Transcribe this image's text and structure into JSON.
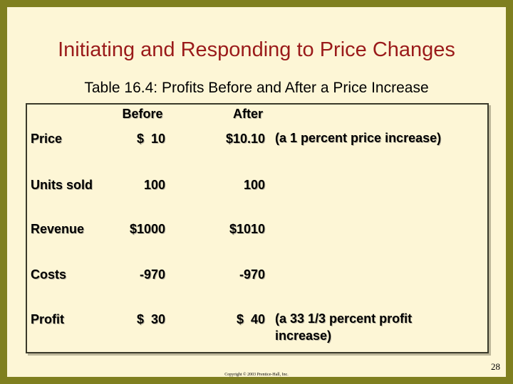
{
  "header": {
    "title": "Initiating and Responding to Price Changes",
    "subtitle": "Table 16.4: Profits Before and After a Price Increase"
  },
  "table": {
    "columns": [
      "Before",
      "After"
    ],
    "rows": [
      {
        "label": "Price",
        "before": "$  10",
        "after": "$10.10",
        "note": "(a 1 percent price increase)"
      },
      {
        "label": "Units sold",
        "before": "100",
        "after": "100"
      },
      {
        "label": "Revenue",
        "before": "$1000",
        "after": "$1010"
      },
      {
        "label": "Costs",
        "before": "-970",
        "after": "-970"
      },
      {
        "label": "Profit",
        "before": "$  30",
        "after": "$  40",
        "note": "(a 33 1/3 percent profit increase)"
      }
    ]
  },
  "footer": {
    "page": "28",
    "copyright": "Copyright © 2003 Prentice-Hall, Inc."
  }
}
